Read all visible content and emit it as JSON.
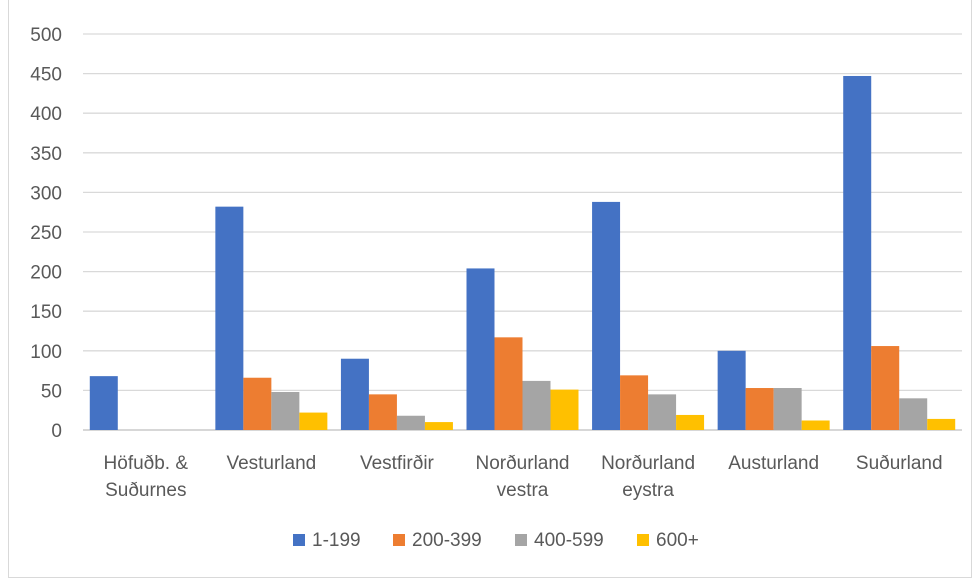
{
  "chart_data": {
    "type": "bar",
    "title": "",
    "xlabel": "",
    "ylabel": "",
    "ylim": [
      0,
      500
    ],
    "yticks": [
      0,
      50,
      100,
      150,
      200,
      250,
      300,
      350,
      400,
      450,
      500
    ],
    "grid": true,
    "legend_position": "bottom",
    "categories": [
      [
        "Höfuðb. &",
        "Suðurnes"
      ],
      [
        "Vesturland"
      ],
      [
        "Vestfirðir"
      ],
      [
        "Norðurland",
        "vestra"
      ],
      [
        "Norðurland",
        "eystra"
      ],
      [
        "Austurland"
      ],
      [
        "Suðurland"
      ]
    ],
    "series": [
      {
        "name": "1-199",
        "color": "#4472C4",
        "values": [
          68,
          282,
          90,
          204,
          288,
          100,
          447
        ]
      },
      {
        "name": "200-399",
        "color": "#ED7D31",
        "values": [
          0,
          66,
          45,
          117,
          69,
          53,
          106
        ]
      },
      {
        "name": "400-599",
        "color": "#A5A5A5",
        "values": [
          0,
          48,
          18,
          62,
          45,
          53,
          40
        ]
      },
      {
        "name": "600+",
        "color": "#FFC000",
        "values": [
          0,
          22,
          10,
          51,
          19,
          12,
          14
        ]
      }
    ]
  }
}
